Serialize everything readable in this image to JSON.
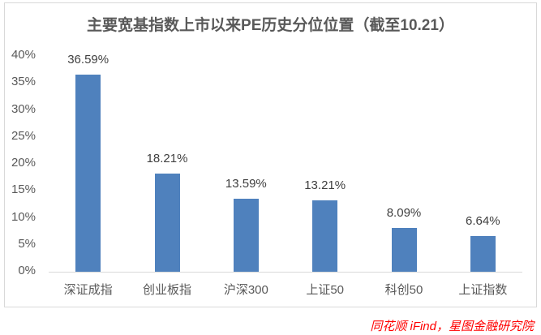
{
  "page": {
    "background_color": "#ffffff"
  },
  "chart_data": {
    "type": "bar",
    "title": "主要宽基指数上市以来PE历史分位位置（截至10.21）",
    "categories": [
      "深证成指",
      "创业板指",
      "沪深300",
      "上证50",
      "科创50",
      "上证指数"
    ],
    "values": [
      36.59,
      18.21,
      13.59,
      13.21,
      8.09,
      6.64
    ],
    "data_labels": [
      "36.59%",
      "18.21%",
      "13.59%",
      "13.21%",
      "8.09%",
      "6.64%"
    ],
    "y_ticks": [
      "0%",
      "5%",
      "10%",
      "15%",
      "20%",
      "25%",
      "30%",
      "35%",
      "40%"
    ],
    "y_tick_values": [
      0,
      5,
      10,
      15,
      20,
      25,
      30,
      35,
      40
    ],
    "ylim": [
      0,
      40
    ],
    "xlabel": "",
    "ylabel": "",
    "grid": false,
    "legend": false,
    "bar_color": "#4f81bd",
    "annotation": "同花顺 iFind，星图金融研究院",
    "colors": {
      "bar": "#4f81bd",
      "title_text": "#595959",
      "axis_text": "#595959",
      "data_label_text": "#404040",
      "annotation_text": "#ff0000",
      "panel_border": "#d9d9d9",
      "axis_line": "#d9d9d9"
    }
  }
}
